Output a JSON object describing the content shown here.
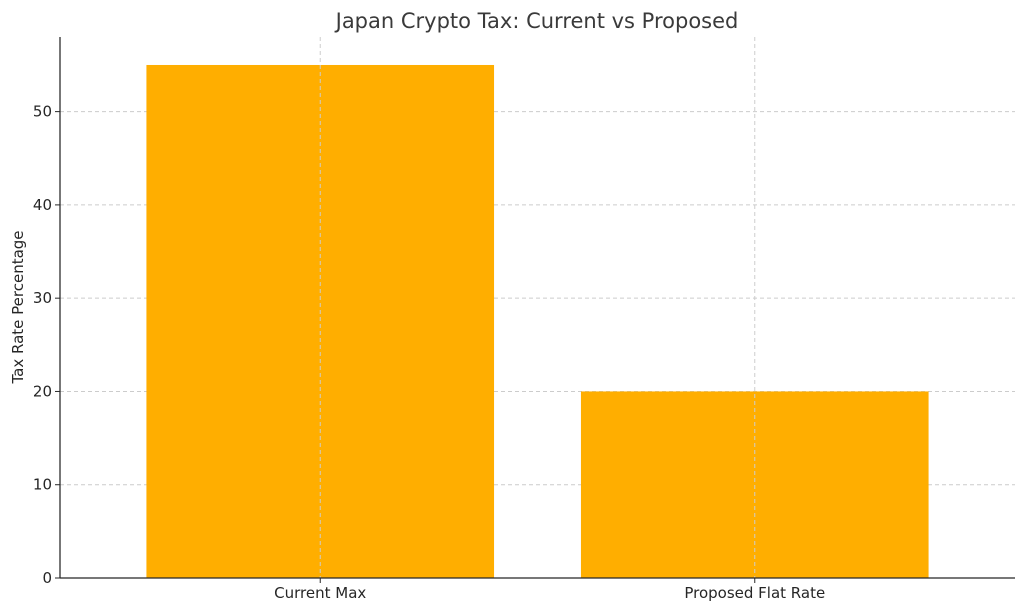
{
  "chart_data": {
    "type": "bar",
    "title": "Japan Crypto Tax: Current vs Proposed",
    "xlabel": "",
    "ylabel": "Tax Rate Percentage",
    "categories": [
      "Current Max",
      "Proposed Flat Rate"
    ],
    "values": [
      55,
      20
    ],
    "ylim": [
      0,
      58
    ],
    "yticks": [
      0,
      10,
      20,
      30,
      40,
      50
    ],
    "grid": true,
    "bar_color": "#FFAE00"
  }
}
